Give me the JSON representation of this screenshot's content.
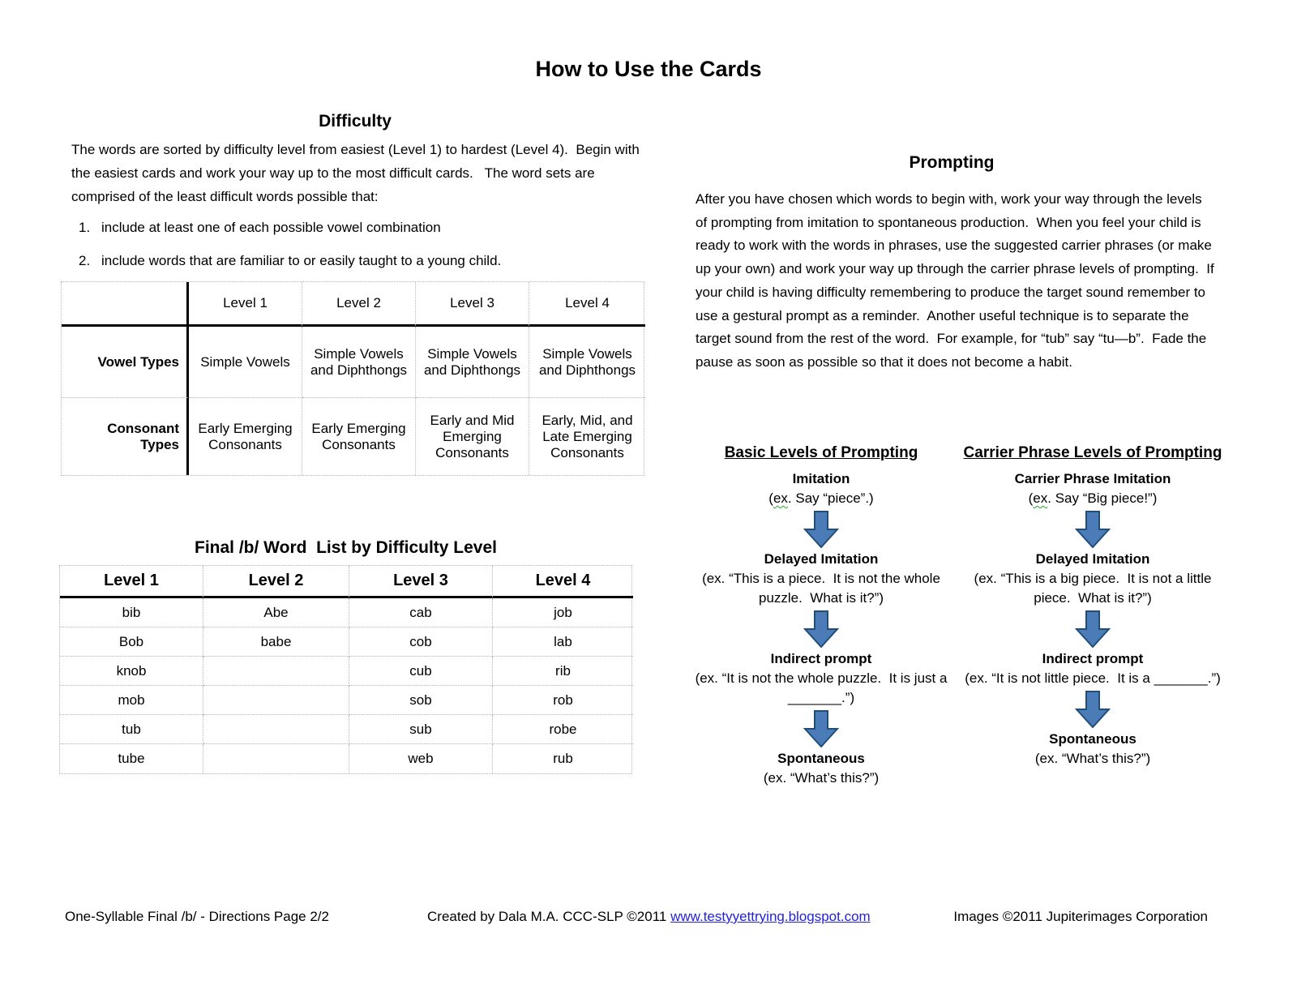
{
  "page": {
    "title": "How to Use the Cards",
    "footer": {
      "left": "One-Syllable Final /b/ - Directions Page 2/2",
      "center_prefix": "Created by Dala M.A. CCC-SLP ©2011 ",
      "center_link": "www.testyyettrying.blogspot.com",
      "right": "Images ©2011 Jupiterimages Corporation"
    }
  },
  "difficulty": {
    "heading": "Difficulty",
    "intro": "The words are sorted by difficulty level from easiest (Level 1) to hardest (Level 4).  Begin with the easiest cards and work your way up to the most difficult cards.   The word sets are comprised of the least difficult words possible that:",
    "list": [
      {
        "num": "1.",
        "text": "include at least one of each possible vowel combination"
      },
      {
        "num": "2.",
        "text": "include words that are familiar to or easily taught to a young child."
      }
    ],
    "table": {
      "col_headers": [
        "Level 1",
        "Level 2",
        "Level 3",
        "Level 4"
      ],
      "rows": [
        {
          "header": "Vowel Types",
          "cells": [
            "Simple Vowels",
            "Simple Vowels and Diphthongs",
            "Simple Vowels and Diphthongs",
            "Simple Vowels and Diphthongs"
          ]
        },
        {
          "header": "Consonant Types",
          "cells": [
            "Early Emerging Consonants",
            "Early Emerging Consonants",
            "Early and Mid Emerging Consonants",
            "Early, Mid, and Late Emerging Consonants"
          ]
        }
      ]
    }
  },
  "word_list": {
    "heading": "Final /b/ Word  List by Difficulty Level",
    "col_headers": [
      "Level 1",
      "Level 2",
      "Level 3",
      "Level 4"
    ],
    "rows": [
      [
        "bib",
        "Abe",
        "cab",
        "job"
      ],
      [
        "Bob",
        "babe",
        "cob",
        "lab"
      ],
      [
        "knob",
        "",
        "cub",
        "rib"
      ],
      [
        "mob",
        "",
        "sob",
        "rob"
      ],
      [
        "tub",
        "",
        "sub",
        "robe"
      ],
      [
        "tube",
        "",
        "web",
        "rub"
      ]
    ]
  },
  "prompting": {
    "heading": "Prompting",
    "body": "After you have chosen which words to begin with, work your way through the levels of prompting from imitation to spontaneous production.  When you feel your child is ready to work with the words in phrases, use the suggested carrier phrases (or make up your own) and work your way up through the carrier phrase levels of prompting.  If your child is having difficulty remembering to produce the target sound remember to use a gestural prompt as a reminder.  Another useful technique is to separate the target sound from the rest of the word.  For example, for “tub” say “tu—b”.  Fade the pause as soon as possible so that it does not become a habit.",
    "basic": {
      "heading": "Basic Levels of Prompting",
      "steps": [
        {
          "title": "Imitation",
          "example": "(ex. Say “piece”.)"
        },
        {
          "title": "Delayed Imitation",
          "example": "(ex. “This is a piece.  It is not the whole puzzle.  What is it?”)"
        },
        {
          "title": "Indirect prompt",
          "example": "(ex. “It is not the whole puzzle.  It is just a _______.”)"
        },
        {
          "title": "Spontaneous",
          "example": "(ex. “What’s this?”)"
        }
      ]
    },
    "carrier": {
      "heading": "Carrier Phrase Levels of Prompting",
      "steps": [
        {
          "title": "Carrier Phrase Imitation",
          "example": "(ex. Say “Big piece!”)"
        },
        {
          "title": "Delayed Imitation",
          "example": "(ex. “This is a big piece.  It is not a little piece.  What is it?”)"
        },
        {
          "title": "Indirect prompt",
          "example": "(ex. “It is not little piece.  It is a _______.”)"
        },
        {
          "title": "Spontaneous",
          "example": "(ex. “What’s this?”)"
        }
      ]
    }
  },
  "colors": {
    "arrow_fill": "#4b7cb8",
    "arrow_stroke": "#1f4e79",
    "link_blue": "#2222dd"
  }
}
